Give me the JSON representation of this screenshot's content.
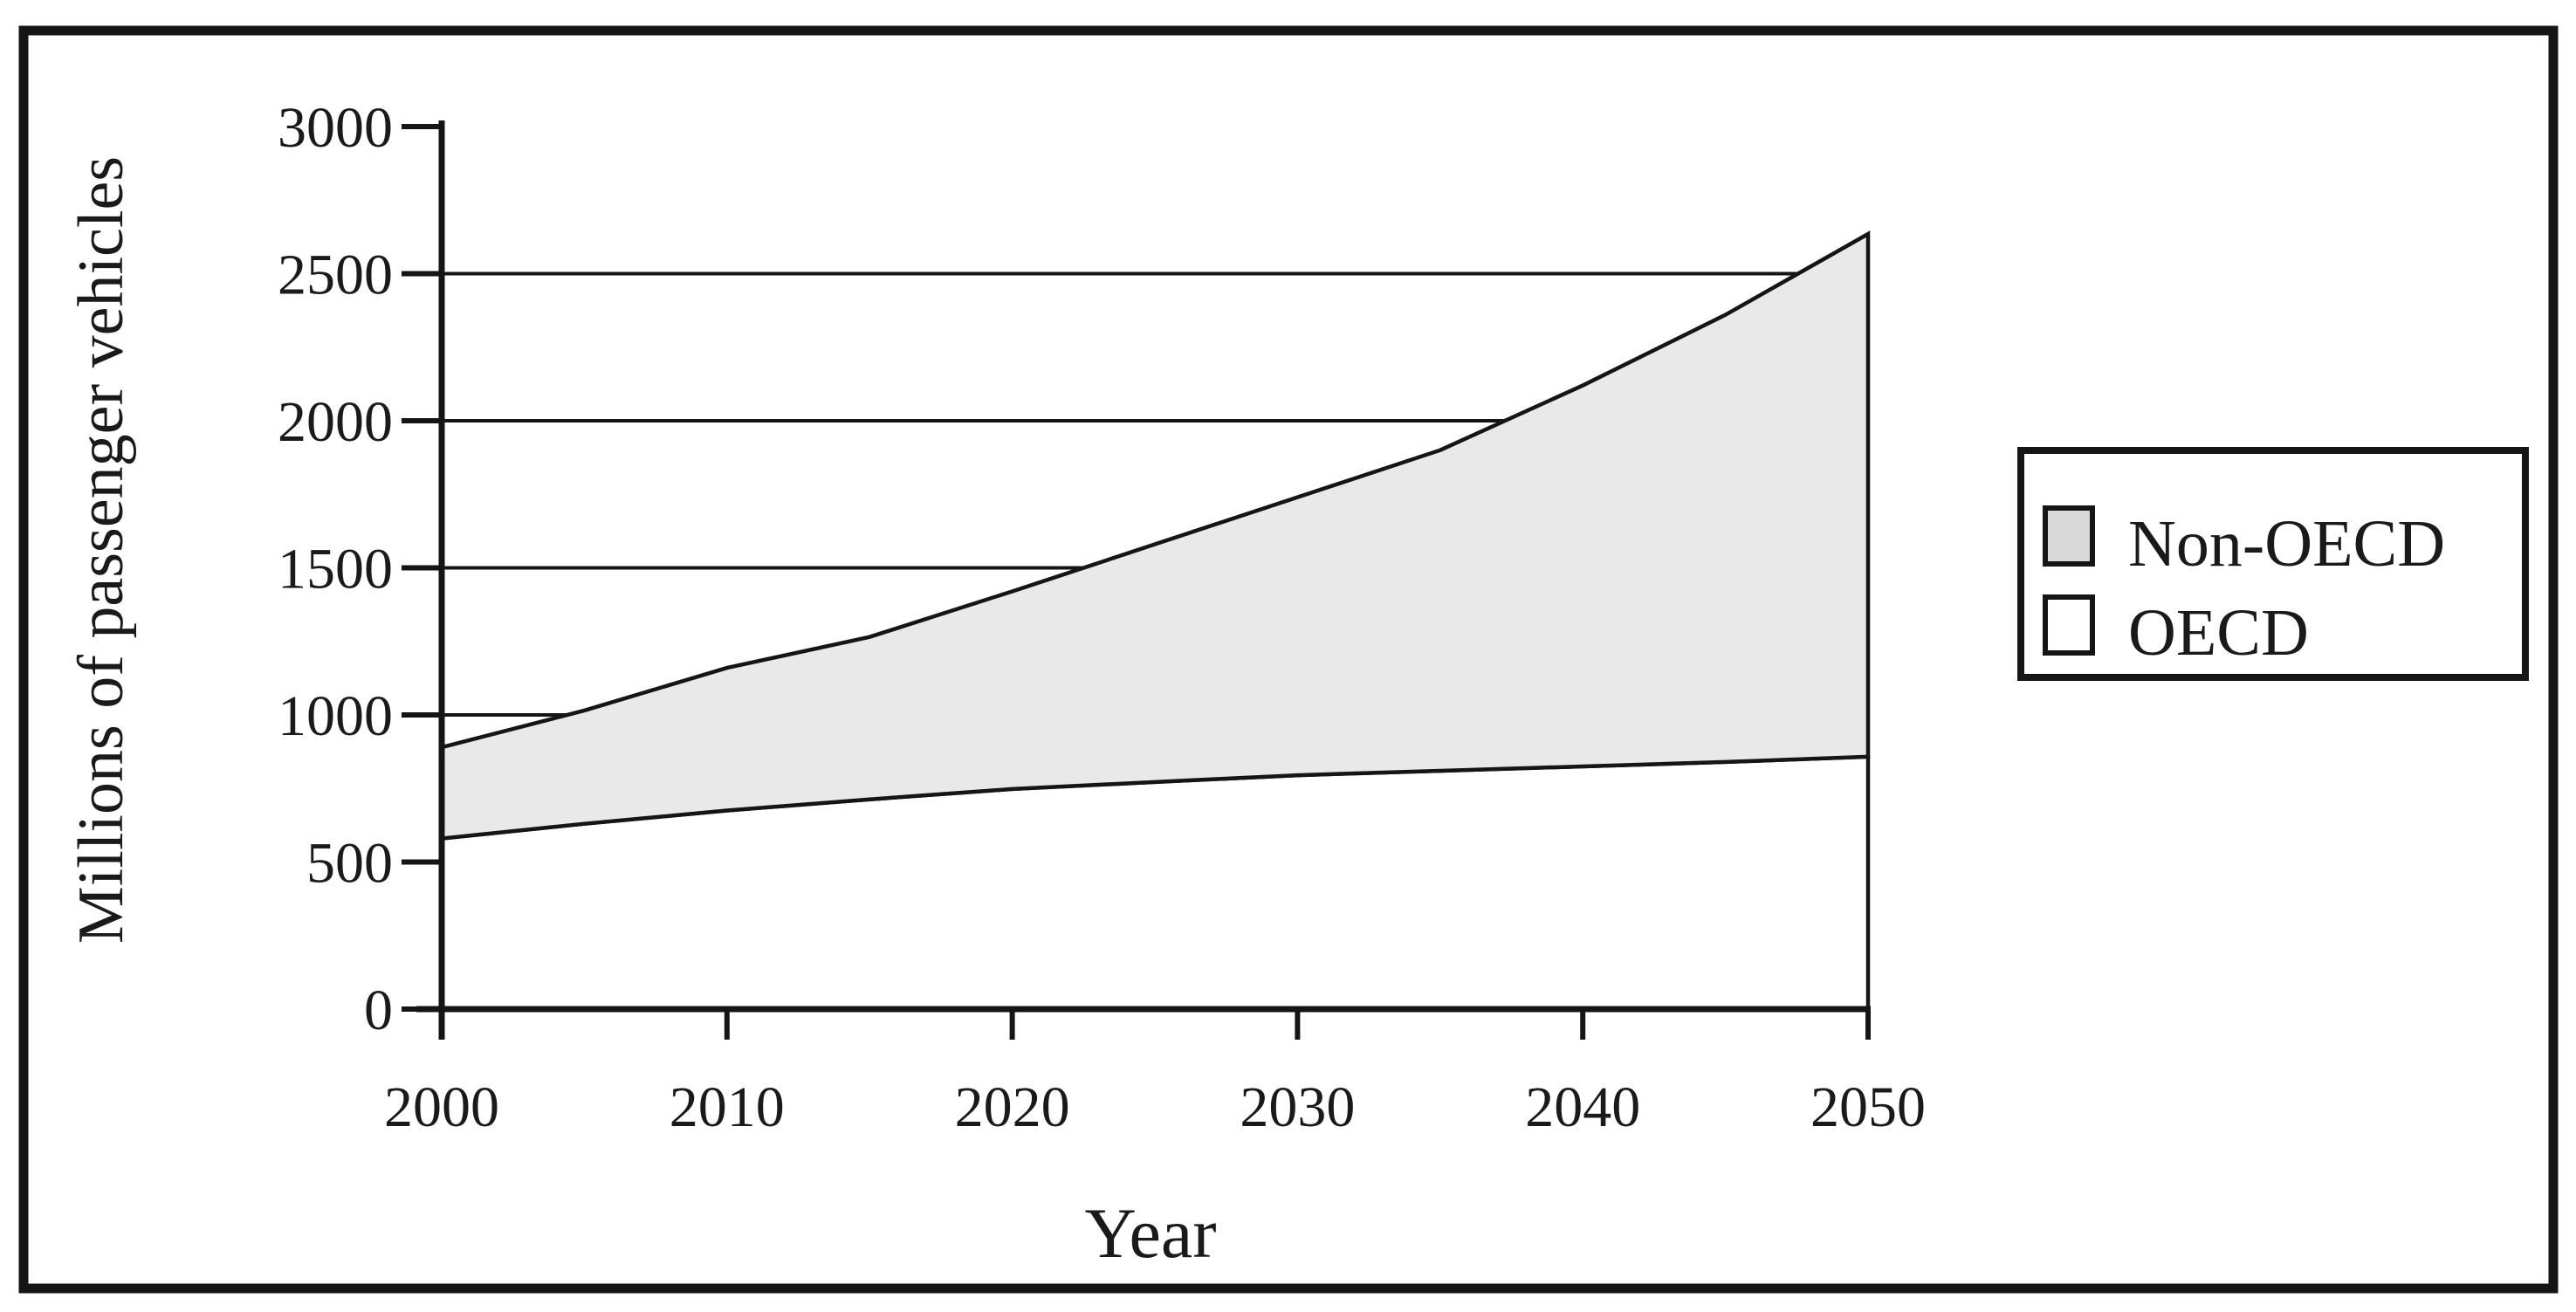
{
  "figure": {
    "y_axis_title": "Millions of passenger vehicles",
    "x_axis_title": "Year",
    "colors": {
      "stroke": "#151515",
      "text": "#1a1a1a",
      "non_oecd_fill": "#e9e9e9",
      "oecd_fill": "#ffffff",
      "background": "#ffffff",
      "legend_non_oecd_swatch": "#d9d9d9",
      "legend_oecd_swatch": "#ffffff"
    }
  },
  "legend": {
    "items": [
      {
        "label": "Non-OECD",
        "swatch": "#d9d9d9"
      },
      {
        "label": "OECD",
        "swatch": "#ffffff"
      }
    ]
  },
  "chart_data": {
    "type": "area",
    "stacked": true,
    "title": "",
    "xlabel": "Year",
    "ylabel": "Millions of passenger vehicles",
    "x": [
      2000,
      2005,
      2010,
      2015,
      2020,
      2025,
      2030,
      2035,
      2040,
      2045,
      2050
    ],
    "series": [
      {
        "name": "OECD",
        "values": [
          580,
          630,
          675,
          713,
          748,
          772,
          795,
          810,
          825,
          840,
          858
        ]
      },
      {
        "name": "Non-OECD",
        "values": [
          310,
          385,
          485,
          552,
          672,
          808,
          945,
          1090,
          1295,
          1520,
          1777
        ]
      }
    ],
    "stacked_totals": [
      890,
      1015,
      1160,
      1265,
      1420,
      1580,
      1740,
      1900,
      2120,
      2360,
      2635
    ],
    "xlim": [
      2000,
      2050
    ],
    "ylim": [
      0,
      3000
    ],
    "x_ticks": [
      2000,
      2010,
      2020,
      2030,
      2040,
      2050
    ],
    "y_ticks": [
      0,
      500,
      1000,
      1500,
      2000,
      2500,
      3000
    ],
    "gridlines_at": [
      1000,
      1500,
      2000,
      2500
    ],
    "grid": "horizontal",
    "legend_position": "right"
  }
}
